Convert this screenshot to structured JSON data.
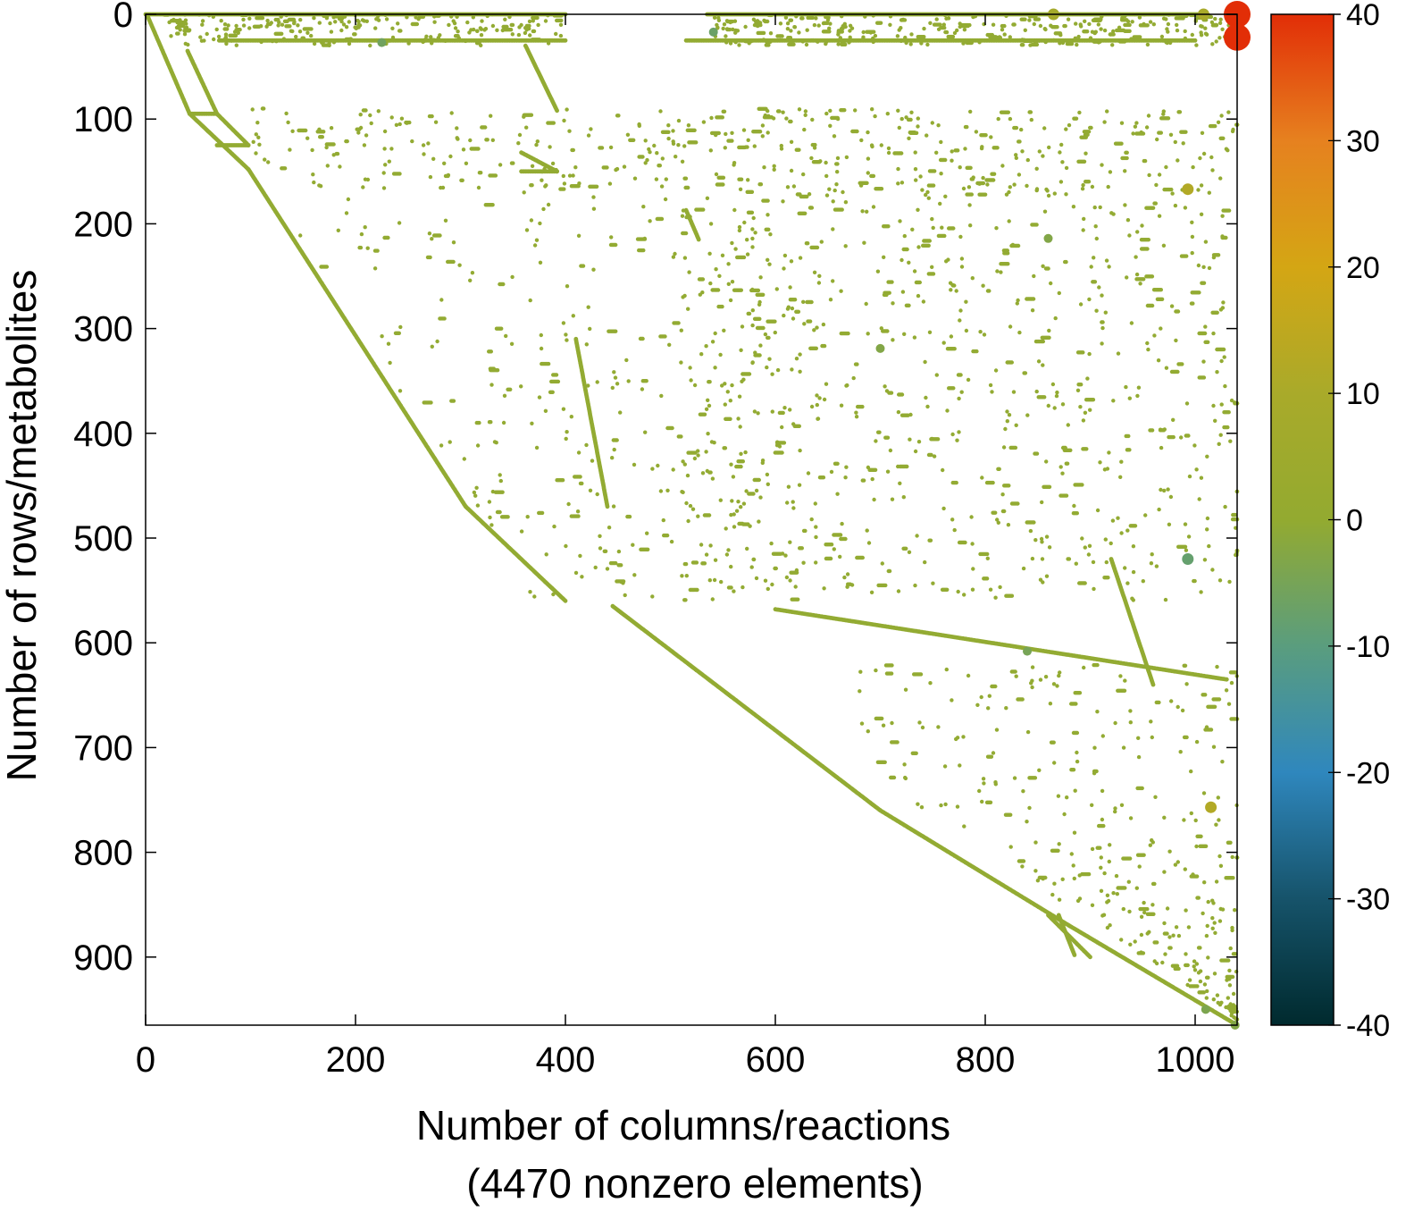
{
  "chart_data": {
    "type": "scatter",
    "title": "",
    "xlabel": "Number of columns/reactions",
    "xlabel_sub": "(4470 nonzero elements)",
    "ylabel": "Number of rows/metabolites",
    "xlim": [
      0,
      1040
    ],
    "ylim": [
      965,
      0
    ],
    "y_axis_inverted": true,
    "grid": false,
    "xticks": [
      0,
      200,
      400,
      600,
      800,
      1000
    ],
    "yticks": [
      0,
      100,
      200,
      300,
      400,
      500,
      600,
      700,
      800,
      900
    ],
    "colorbar": {
      "range": [
        -40,
        40
      ],
      "ticks": [
        40,
        30,
        20,
        10,
        0,
        -10,
        -20,
        -30,
        -40
      ],
      "tick_labels": [
        "40",
        "30",
        "20",
        "10",
        "0",
        "-10",
        "-20",
        "-30",
        "-40"
      ],
      "colors": [
        "#002a2e",
        "#16536a",
        "#2f87bd",
        "#5a9d7e",
        "#93aa30",
        "#a9aa2a",
        "#d4a614",
        "#e6811f",
        "#e22e07"
      ]
    },
    "nonzero_count": 4470,
    "marker_color": "#93ab33",
    "highlights": [
      {
        "x": 1040,
        "y": 0,
        "value": 40
      },
      {
        "x": 1040,
        "y": 22,
        "value": 40
      },
      {
        "x": 993,
        "y": 167,
        "value": 12
      },
      {
        "x": 1015,
        "y": 757,
        "value": 12
      },
      {
        "x": 1008,
        "y": 0,
        "value": 10
      },
      {
        "x": 993,
        "y": 520,
        "value": -8
      },
      {
        "x": 541,
        "y": 17,
        "value": -7
      },
      {
        "x": 225,
        "y": 27,
        "value": -6
      },
      {
        "x": 840,
        "y": 608,
        "value": -5
      },
      {
        "x": 1010,
        "y": 950,
        "value": -4
      },
      {
        "x": 700,
        "y": 319,
        "value": -3
      },
      {
        "x": 860,
        "y": 214,
        "value": -3
      },
      {
        "x": 865,
        "y": 0,
        "value": 8
      },
      {
        "x": 1038,
        "y": 965,
        "value": -3
      }
    ],
    "segments": [
      {
        "x": [
          0,
          400
        ],
        "y": [
          0,
          0
        ]
      },
      {
        "x": [
          535,
          1010
        ],
        "y": [
          0,
          0
        ]
      },
      {
        "x": [
          70,
          400
        ],
        "y": [
          25,
          25
        ]
      },
      {
        "x": [
          515,
          1000
        ],
        "y": [
          25,
          25
        ]
      },
      {
        "x": [
          2,
          42
        ],
        "y": [
          2,
          95
        ]
      },
      {
        "x": [
          42,
          98
        ],
        "y": [
          95,
          148
        ]
      },
      {
        "x": [
          40,
          68
        ],
        "y": [
          35,
          95
        ]
      },
      {
        "x": [
          42,
          68
        ],
        "y": [
          95,
          95
        ]
      },
      {
        "x": [
          68,
          98
        ],
        "y": [
          95,
          125
        ]
      },
      {
        "x": [
          68,
          98
        ],
        "y": [
          125,
          125
        ]
      },
      {
        "x": [
          358,
          392
        ],
        "y": [
          150,
          150
        ]
      },
      {
        "x": [
          358,
          392
        ],
        "y": [
          132,
          150
        ]
      },
      {
        "x": [
          362,
          392
        ],
        "y": [
          30,
          92
        ]
      },
      {
        "x": [
          98,
          305
        ],
        "y": [
          148,
          470
        ]
      },
      {
        "x": [
          305,
          400
        ],
        "y": [
          470,
          560
        ]
      },
      {
        "x": [
          445,
          700
        ],
        "y": [
          565,
          760
        ]
      },
      {
        "x": [
          700,
          880
        ],
        "y": [
          760,
          870
        ]
      },
      {
        "x": [
          880,
          1040
        ],
        "y": [
          870,
          965
        ]
      },
      {
        "x": [
          600,
          1030
        ],
        "y": [
          568,
          635
        ]
      },
      {
        "x": [
          920,
          960
        ],
        "y": [
          520,
          640
        ]
      },
      {
        "x": [
          860,
          900
        ],
        "y": [
          860,
          900
        ]
      },
      {
        "x": [
          870,
          885
        ],
        "y": [
          860,
          898
        ]
      },
      {
        "x": [
          515,
          527
        ],
        "y": [
          187,
          215
        ]
      },
      {
        "x": [
          410,
          440
        ],
        "y": [
          310,
          470
        ]
      }
    ],
    "clusters": [
      {
        "x": [
          100,
          1040
        ],
        "y": [
          90,
          170
        ],
        "n": 420
      },
      {
        "x": [
          100,
          640
        ],
        "y": [
          170,
          560
        ],
        "n": 300
      },
      {
        "x": [
          510,
          1040
        ],
        "y": [
          170,
          560
        ],
        "n": 650
      },
      {
        "x": [
          680,
          1040
        ],
        "y": [
          620,
          960
        ],
        "n": 320
      },
      {
        "x": [
          540,
          1040
        ],
        "y": [
          0,
          30
        ],
        "n": 300
      },
      {
        "x": [
          0,
          400
        ],
        "y": [
          0,
          30
        ],
        "n": 220
      }
    ]
  }
}
